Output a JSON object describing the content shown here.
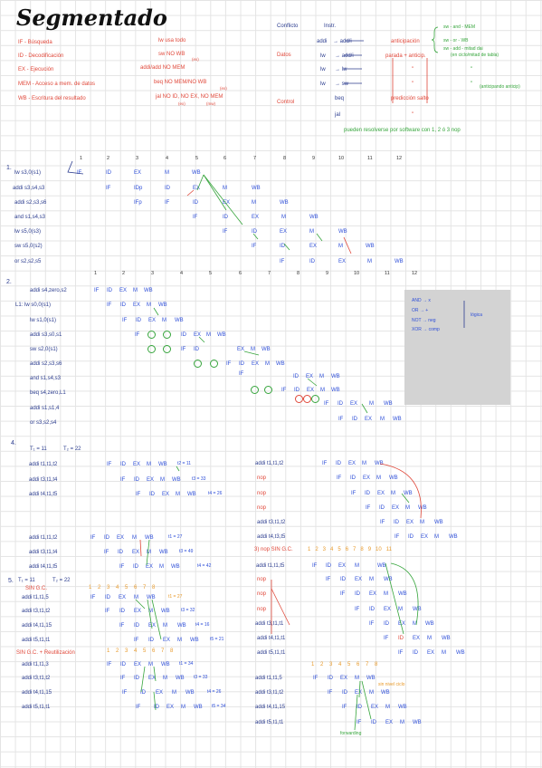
{
  "title": "Segmentado",
  "stages": [
    {
      "key": "IF",
      "text": "IF - Búsqueda",
      "usage": "lw  usa todo"
    },
    {
      "key": "ID",
      "text": "ID - Decodificación",
      "usage": "sw  NO WB"
    },
    {
      "key": "EX",
      "text": "EX - Ejecución",
      "usage": "addi/add  NO MEM"
    },
    {
      "key": "MEM",
      "text": "MEM - Acceso a mem. de datos",
      "usage": "beq  NO MEM/NO WB"
    },
    {
      "key": "WB",
      "text": "WB - Escritura del resultado",
      "usage": "jal  NO ID, NO EX, NO MEM"
    }
  ],
  "usage_notes": {
    "sw_note": "(ex)",
    "beq_note": "(ex)",
    "jal_note1": "(ex)",
    "jal_note2": "(mw)"
  },
  "conflicts": {
    "h1": "Conflicto",
    "h2": "Instr.",
    "datos_label": "Datos",
    "control_label": "Control",
    "rows": [
      {
        "a": "addi",
        "b": "→ add/i",
        "c": "anticipación"
      },
      {
        "a": "lw",
        "b": "→ add/i",
        "c": "parada + anticip."
      },
      {
        "a": "lw",
        "b": "→ lw",
        "c": "\""
      },
      {
        "a": "lw",
        "b": "→ sw",
        "c": "\""
      },
      {
        "a": "beq",
        "b": "",
        "c": "predicción salto"
      },
      {
        "a": "jal",
        "b": "",
        "c": "\""
      }
    ],
    "brace_notes": [
      "sw - and - MEM",
      "sw - or - WB",
      "sw - add - mitad dai"
    ],
    "right_notes": [
      "(en ciclo/mitad de tabla)",
      "\"",
      "\"",
      "(anticipando anticip)"
    ],
    "footer": "pueden resolverse por software con 1, 2 ó 3 nop"
  },
  "ex1": {
    "num": "1.",
    "cycles": [
      "1",
      "2",
      "3",
      "4",
      "5",
      "6",
      "7",
      "8",
      "9",
      "10",
      "11",
      "12"
    ],
    "instrs": [
      "lw  s3,0(s1)",
      "addi s3,s4,s3",
      "addi s2,s3,s6",
      "and s1,s4,s3",
      "lw  s5,0(s3)",
      "sw  s5,0(s2)",
      "or  s2,s2,s5"
    ]
  },
  "ex2": {
    "num": "2.",
    "cycles": [
      "1",
      "2",
      "3",
      "4",
      "5",
      "6",
      "7",
      "8",
      "9",
      "10",
      "11",
      "12"
    ],
    "instrs": [
      "addi s4,zero,s2",
      "L1: lw s0,0(s1)",
      "lw s1,0(s1)",
      "addi s3,s0,s1",
      "sw s2,0(s1)",
      "addi s2,s3,s6",
      "and s1,s4,s3",
      "beq s4,zero,L1",
      "addi s1,s1,4",
      "or s3,s2,s4"
    ],
    "gray_notes": [
      "AND → x",
      "OR → +",
      "NOT → neg",
      "XOR → comp"
    ],
    "gray_side": "lógica"
  },
  "ex4": {
    "num": "4.",
    "t1": "T₁ = 11",
    "t2": "T₂ = 22",
    "a_instrs": [
      "addi t1,t1,t2",
      "addi t3,t1,t4",
      "addi t4,t1,t5"
    ],
    "a_notes": [
      "t2 = 11",
      "t3 = 33",
      "t4 = 26"
    ],
    "b_instrs": [
      "addi t1,t1,t2",
      "addi t3,t1,t4",
      "addi t4,t1,t5"
    ],
    "b_notes": [
      "t1 = 27",
      "t3 = 49",
      "t4 = 42"
    ],
    "nop": "nop",
    "right_a": [
      "addi t1,t1,t2",
      "addi t3,t1,t2",
      "addi t4,t3,t5"
    ],
    "right_b_label": "3) nop SIN G.C.",
    "right_b": [
      "addi t1,t1,t5",
      "addi t3,t1,t1",
      "addi t4,t1,t1",
      "addi t5,t1,t1"
    ]
  },
  "ex5": {
    "num": "5.",
    "t1": "T₁ = 11",
    "t2": "T₂ = 22",
    "sin_gc": "SIN G.C.",
    "a_instrs": [
      "addi t1,t1,5",
      "addi t3,t1,t2",
      "addi t4,t1,15",
      "addi t5,t1,t1"
    ],
    "a_notes": [
      "t1 = 27",
      "t3 = 32",
      "t4 = 16",
      "t5 = 21"
    ],
    "b_label": "SIN G.C. + Reutilización",
    "b_instrs": [
      "addi t1,t1,3",
      "addi t3,t1,t2",
      "addi t4,t1,15",
      "addi t5,t1,t1"
    ],
    "b_notes": [
      "t1 = 34",
      "t3 = 33",
      "t4 = 26",
      "t5 = 34"
    ],
    "c_instrs": [
      "addi t1,t1,5",
      "addi t3,t1,t2",
      "addi t4,t1,15",
      "addi t5,t1,t1"
    ],
    "c_note": "sin nivel ciclo",
    "forwarding": "forwarding",
    "cycle_nums": [
      "1",
      "2",
      "3",
      "4",
      "5",
      "6",
      "7",
      "8"
    ]
  },
  "pipe": {
    "IF": "IF",
    "ID": "ID",
    "EX": "EX",
    "MEM": "M",
    "WB": "WB",
    "IDp": "IDp",
    "IFp": "IFp"
  }
}
